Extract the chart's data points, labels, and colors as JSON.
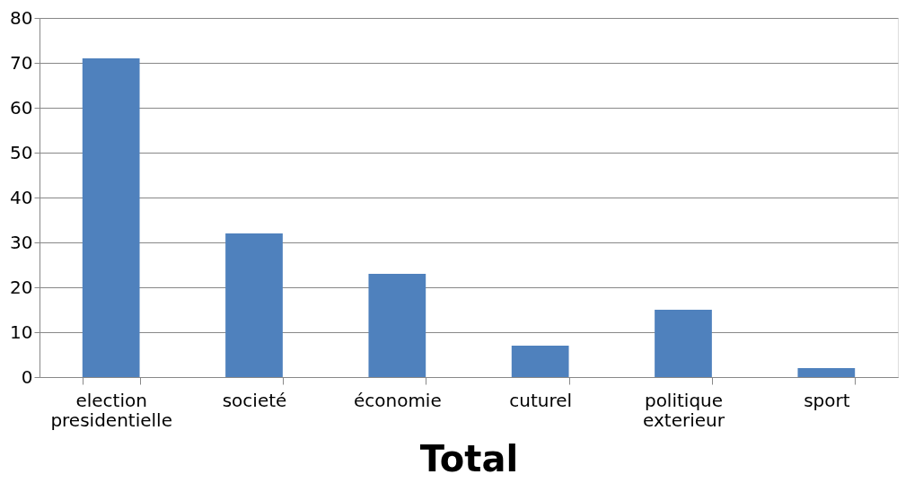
{
  "chart_data": {
    "type": "bar",
    "xlabel": "Total",
    "categories": [
      "election presidentielle",
      "societé",
      "économie",
      "cuturel",
      "politique exterieur",
      "sport"
    ],
    "values": [
      71,
      32,
      23,
      7,
      15,
      2
    ],
    "color": "#4f81bd",
    "ylim": [
      0,
      80
    ],
    "yticks": [
      0,
      10,
      20,
      30,
      40,
      50,
      60,
      70,
      80
    ],
    "grid": "y"
  }
}
